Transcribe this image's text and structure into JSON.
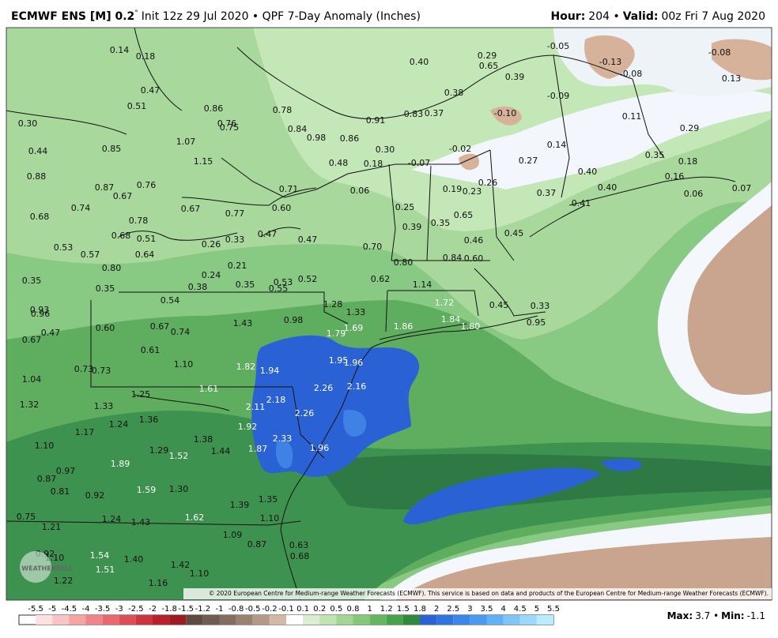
{
  "header": {
    "title": "ECMWF ENS [M] 0.2",
    "degree": "°",
    "subtitle": "Init 12z 29 Jul 2020 • QPF 7-Day Anomaly (Inches)",
    "hour_label": "Hour:",
    "hour": "204 •",
    "valid_label": "Valid:",
    "valid": "00z Fri 7 Aug 2020"
  },
  "map": {
    "labels": [
      "0.14",
      "0.18",
      "0.40",
      "0.29",
      "0.65",
      "-0.05",
      "-0.08",
      "-0.13",
      "-0.08",
      "0.39",
      "0.13",
      "0.47",
      "0.38",
      "-0.09",
      "0.51",
      "0.86",
      "0.78",
      "0.83",
      "0.37",
      "-0.10",
      "0.11",
      "0.30",
      "0.76",
      "0.75",
      "0.84",
      "0.91",
      "0.29",
      "0.98",
      "0.86",
      "1.07",
      "0.85",
      "0.44",
      "0.30",
      "-0.02",
      "0.14",
      "0.35",
      "0.18",
      "1.15",
      "0.48",
      "0.18",
      "-0.07",
      "0.27",
      "0.88",
      "0.40",
      "0.16",
      "0.87",
      "0.76",
      "0.71",
      "0.06",
      "0.19",
      "0.23",
      "0.26",
      "0.37",
      "0.40",
      "0.06",
      "0.07",
      "0.67",
      "0.74",
      "0.67",
      "0.77",
      "0.60",
      "0.25",
      "0.41",
      "0.68",
      "0.78",
      "0.65",
      "0.39",
      "0.35",
      "0.45",
      "0.47",
      "0.47",
      "0.68",
      "0.51",
      "0.26",
      "0.33",
      "0.46",
      "0.53",
      "0.57",
      "0.64",
      "0.70",
      "0.84",
      "0.60",
      "0.80",
      "0.21",
      "0.80",
      "0.24",
      "0.62",
      "0.52",
      "0.53",
      "0.55",
      "0.35",
      "0.38",
      "1.14",
      "0.35",
      "0.35",
      "0.54",
      "1.28",
      "1.72",
      "0.45",
      "0.33",
      "1.33",
      "0.93",
      "0.96",
      "0.98",
      "1.43",
      "1.86",
      "1.84",
      "1.80",
      "0.95",
      "0.60",
      "0.67",
      "0.74",
      "0.47",
      "0.67",
      "1.79",
      "1.69",
      "0.61",
      "1.95",
      "1.96",
      "1.82",
      "1.94",
      "1.10",
      "0.73",
      "0.73",
      "1.04",
      "2.26",
      "2.16",
      "1.61",
      "1.25",
      "2.18",
      "2.11",
      "2.26",
      "1.32",
      "1.33",
      "1.36",
      "1.24",
      "1.92",
      "1.17",
      "2.33",
      "1.38",
      "1.10",
      "1.29",
      "1.52",
      "1.44",
      "1.87",
      "1.96",
      "1.89",
      "0.97",
      "0.87",
      "0.81",
      "0.92",
      "1.59",
      "1.30",
      "1.39",
      "1.35",
      "1.62",
      "0.75",
      "1.24",
      "1.43",
      "1.10",
      "1.21",
      "1.09",
      "0.87",
      "0.63",
      "0.92",
      "1.10",
      "1.54",
      "1.40",
      "0.68",
      "1.42",
      "1.51",
      "1.10",
      "1.22",
      "1.16"
    ],
    "copyright": "© 2020 European Centre for Medium-range Weather Forecasts (ECMWF). This service is based on data and products of the European Centre for Medium-range Weather Forecasts (ECMWF).",
    "logo": "WEATHERBELL"
  },
  "colorbar": {
    "ticks": [
      "-5.5",
      "-5",
      "-4.5",
      "-4",
      "-3.5",
      "-3",
      "-2.5",
      "-2",
      "-1.8",
      "-1.5",
      "-1.2",
      "-1",
      "-0.8",
      "-0.5",
      "-0.2",
      "-0.1",
      "0.1",
      "0.2",
      "0.5",
      "0.8",
      "1",
      "1.2",
      "1.5",
      "1.8",
      "2",
      "2.5",
      "3",
      "3.5",
      "4",
      "4.5",
      "5",
      "5.5"
    ]
  },
  "footer": {
    "max_label": "Max:",
    "max": "3.7 •",
    "min_label": "Min:",
    "min": "-1.1"
  }
}
